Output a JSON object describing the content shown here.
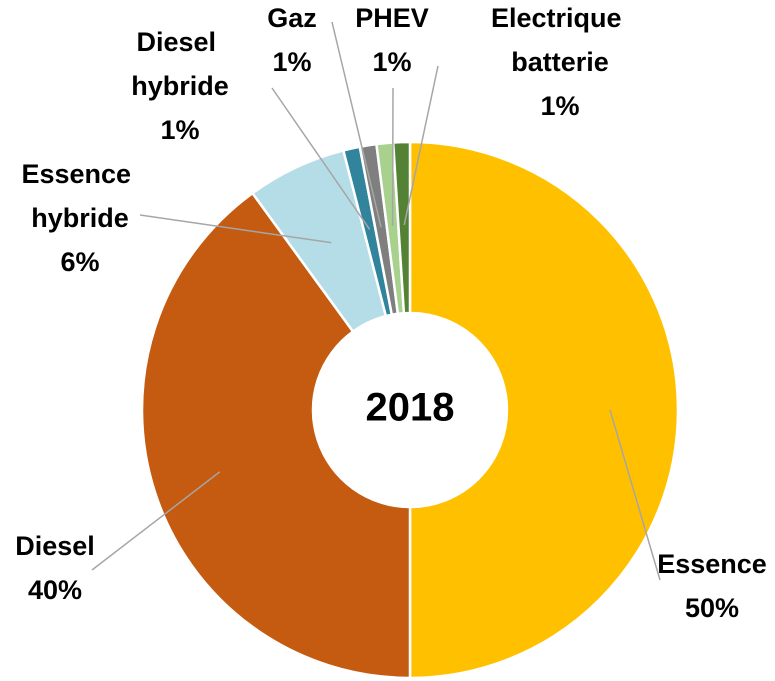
{
  "chart_data": {
    "type": "donut",
    "center_label": "2018",
    "categories": [
      "Essence",
      "Diesel",
      "Essence hybride",
      "Diesel hybride",
      "Gaz",
      "PHEV",
      "Electrique batterie"
    ],
    "values": [
      50,
      40,
      6,
      1,
      1,
      1,
      1
    ],
    "value_labels": [
      "50%",
      "40%",
      "6%",
      "1%",
      "1%",
      "1%",
      "1%"
    ],
    "colors": [
      "#ffc000",
      "#c55a11",
      "#b4dde8",
      "#31849b",
      "#7f7f7f",
      "#a9d18e",
      "#548235"
    ]
  }
}
